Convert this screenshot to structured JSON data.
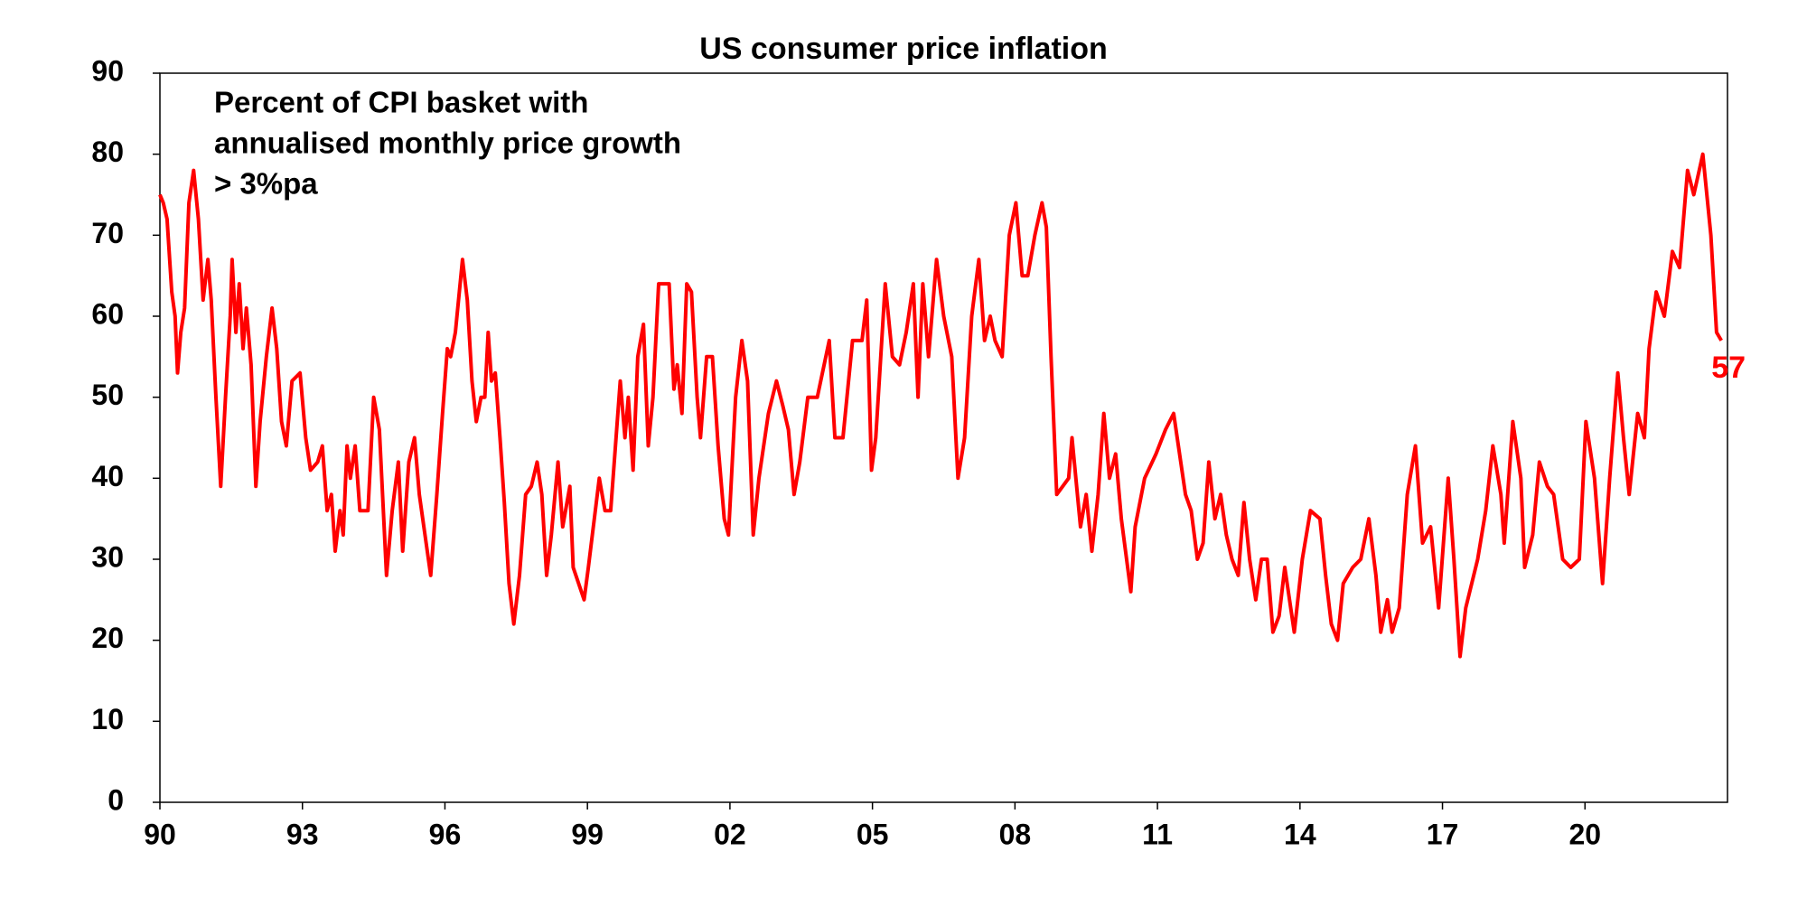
{
  "chart_data": {
    "type": "line",
    "title": "US consumer price inflation",
    "annotation": [
      "Percent of CPI basket with",
      "annualised monthly price growth",
      "> 3%pa"
    ],
    "color": "#ff0000",
    "xlim": [
      1990,
      2023
    ],
    "xticks": [
      {
        "value": 1990,
        "label": "90"
      },
      {
        "value": 1993,
        "label": "93"
      },
      {
        "value": 1996,
        "label": "96"
      },
      {
        "value": 1999,
        "label": "99"
      },
      {
        "value": 2002,
        "label": "02"
      },
      {
        "value": 2005,
        "label": "05"
      },
      {
        "value": 2008,
        "label": "08"
      },
      {
        "value": 2011,
        "label": "11"
      },
      {
        "value": 2014,
        "label": "14"
      },
      {
        "value": 2017,
        "label": "17"
      },
      {
        "value": 2020,
        "label": "20"
      }
    ],
    "ylim": [
      0,
      90
    ],
    "yticks": [
      0,
      10,
      20,
      30,
      40,
      50,
      60,
      70,
      80,
      90
    ],
    "x": [
      1990.0,
      1990.07,
      1990.15,
      1990.25,
      1990.32,
      1990.37,
      1990.44,
      1990.52,
      1990.61,
      1990.71,
      1990.81,
      1990.91,
      1991.01,
      1991.08,
      1991.18,
      1991.28,
      1991.38,
      1991.48,
      1991.52,
      1991.6,
      1991.67,
      1991.75,
      1991.82,
      1991.92,
      1992.02,
      1992.11,
      1992.24,
      1992.36,
      1992.46,
      1992.56,
      1992.66,
      1992.78,
      1992.95,
      1993.07,
      1993.17,
      1993.32,
      1993.42,
      1993.52,
      1993.61,
      1993.69,
      1993.79,
      1993.86,
      1993.94,
      1994.01,
      1994.11,
      1994.21,
      1994.38,
      1994.5,
      1994.62,
      1994.77,
      1994.89,
      1995.02,
      1995.11,
      1995.24,
      1995.36,
      1995.46,
      1995.58,
      1995.7,
      1995.83,
      1995.95,
      1996.05,
      1996.12,
      1996.22,
      1996.37,
      1996.47,
      1996.57,
      1996.66,
      1996.76,
      1996.84,
      1996.91,
      1996.98,
      1997.06,
      1997.16,
      1997.25,
      1997.35,
      1997.45,
      1997.57,
      1997.7,
      1997.82,
      1997.94,
      1998.04,
      1998.14,
      1998.24,
      1998.38,
      1998.48,
      1998.63,
      1998.7,
      1998.93,
      1999.02,
      1999.25,
      1999.37,
      1999.49,
      1999.69,
      1999.79,
      1999.86,
      1999.96,
      2000.06,
      2000.18,
      2000.28,
      2000.38,
      2000.5,
      2000.72,
      2000.82,
      2000.89,
      2000.99,
      2001.09,
      2001.19,
      2001.31,
      2001.38,
      2001.51,
      2001.63,
      2001.75,
      2001.88,
      2001.97,
      2002.12,
      2002.25,
      2002.37,
      2002.49,
      2002.61,
      2002.81,
      2002.98,
      2003.11,
      2003.23,
      2003.35,
      2003.47,
      2003.64,
      2003.84,
      2004.09,
      2004.21,
      2004.38,
      2004.58,
      2004.78,
      2004.88,
      2004.98,
      2005.07,
      2005.27,
      2005.42,
      2005.57,
      2005.71,
      2005.86,
      2005.96,
      2006.06,
      2006.18,
      2006.35,
      2006.5,
      2006.67,
      2006.8,
      2006.94,
      2007.09,
      2007.24,
      2007.36,
      2007.48,
      2007.58,
      2007.73,
      2007.88,
      2008.02,
      2008.15,
      2008.27,
      2008.42,
      2008.57,
      2008.66,
      2008.76,
      2008.88,
      2009.13,
      2009.2,
      2009.38,
      2009.5,
      2009.62,
      2009.75,
      2009.87,
      2009.99,
      2010.12,
      2010.24,
      2010.44,
      2010.53,
      2010.73,
      2010.97,
      2011.17,
      2011.34,
      2011.59,
      2011.71,
      2011.84,
      2011.96,
      2012.08,
      2012.21,
      2012.33,
      2012.45,
      2012.57,
      2012.7,
      2012.82,
      2012.94,
      2013.07,
      2013.19,
      2013.31,
      2013.43,
      2013.56,
      2013.68,
      2013.88,
      2014.05,
      2014.22,
      2014.42,
      2014.54,
      2014.66,
      2014.79,
      2014.91,
      2015.11,
      2015.28,
      2015.45,
      2015.6,
      2015.7,
      2015.84,
      2015.94,
      2016.09,
      2016.26,
      2016.43,
      2016.58,
      2016.75,
      2016.92,
      2017.12,
      2017.24,
      2017.37,
      2017.49,
      2017.74,
      2017.91,
      2018.06,
      2018.23,
      2018.3,
      2018.48,
      2018.65,
      2018.73,
      2018.9,
      2019.04,
      2019.21,
      2019.34,
      2019.53,
      2019.7,
      2019.88,
      2020.02,
      2020.2,
      2020.37,
      2020.52,
      2020.69,
      2020.81,
      2020.93,
      2021.11,
      2021.25,
      2021.35,
      2021.5,
      2021.67,
      2021.84,
      2021.99,
      2022.16,
      2022.29,
      2022.48,
      2022.65,
      2022.77,
      2022.87
    ],
    "values": [
      75,
      74,
      72,
      63,
      60,
      53,
      58,
      61,
      74,
      78,
      72,
      62,
      67,
      62,
      50,
      39,
      50,
      60,
      67,
      58,
      64,
      56,
      61,
      54,
      39,
      47,
      55,
      61,
      56,
      47,
      44,
      52,
      53,
      45,
      41,
      42,
      44,
      36,
      38,
      31,
      36,
      33,
      44,
      40,
      44,
      36,
      36,
      50,
      46,
      28,
      36,
      42,
      31,
      42,
      45,
      38,
      33,
      28,
      38,
      48,
      56,
      55,
      58,
      67,
      62,
      52,
      47,
      50,
      50,
      58,
      52,
      53,
      45,
      37,
      27,
      22,
      28,
      38,
      39,
      42,
      38,
      28,
      33,
      42,
      34,
      39,
      29,
      25,
      29,
      40,
      36,
      36,
      52,
      45,
      50,
      41,
      55,
      59,
      44,
      50,
      64,
      64,
      51,
      54,
      48,
      64,
      63,
      50,
      45,
      55,
      55,
      44,
      35,
      33,
      50,
      57,
      52,
      33,
      40,
      48,
      52,
      49,
      46,
      38,
      42,
      50,
      50,
      57,
      45,
      45,
      57,
      57,
      62,
      41,
      45,
      64,
      55,
      54,
      58,
      64,
      50,
      64,
      55,
      67,
      60,
      55,
      40,
      45,
      60,
      67,
      57,
      60,
      57,
      55,
      70,
      74,
      65,
      65,
      70,
      74,
      71,
      55,
      38,
      40,
      45,
      34,
      38,
      31,
      38,
      48,
      40,
      43,
      35,
      26,
      34,
      40,
      43,
      46,
      48,
      38,
      36,
      30,
      32,
      42,
      35,
      38,
      33,
      30,
      28,
      37,
      30,
      25,
      30,
      30,
      21,
      23,
      29,
      21,
      30,
      36,
      35,
      28,
      22,
      20,
      27,
      29,
      30,
      35,
      28,
      21,
      25,
      21,
      24,
      38,
      44,
      32,
      34,
      24,
      40,
      30,
      18,
      24,
      30,
      36,
      44,
      38,
      32,
      47,
      40,
      29,
      33,
      42,
      39,
      38,
      30,
      29,
      30,
      47,
      40,
      27,
      40,
      53,
      45,
      38,
      48,
      45,
      56,
      63,
      60,
      68,
      66,
      78,
      75,
      80,
      70,
      58,
      57
    ]
  }
}
